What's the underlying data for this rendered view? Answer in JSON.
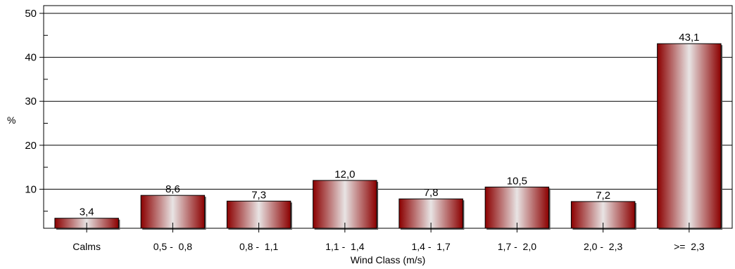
{
  "chart_data": {
    "type": "bar",
    "title": "",
    "xlabel": "Wind Class (m/s)",
    "ylabel": "%",
    "ylim": [
      0,
      50
    ],
    "yticks": [
      10,
      20,
      30,
      40,
      50
    ],
    "grid": true,
    "categories": [
      "Calms",
      "0,5 -  0,8",
      "0,8 -  1,1",
      "1,1 -  1,4",
      "1,4 -  1,7",
      "1,7 -  2,0",
      "2,0 -  2,3",
      ">=  2,3"
    ],
    "values": [
      3.4,
      8.6,
      7.3,
      12.0,
      7.8,
      10.5,
      7.2,
      43.1
    ],
    "value_labels": [
      "3,4",
      "8,6",
      "7,3",
      "12,0",
      "7,8",
      "10,5",
      "7,2",
      "43,1"
    ],
    "bar_color_dark": "#8b0000",
    "bar_color_light": "#e8e4e4"
  }
}
